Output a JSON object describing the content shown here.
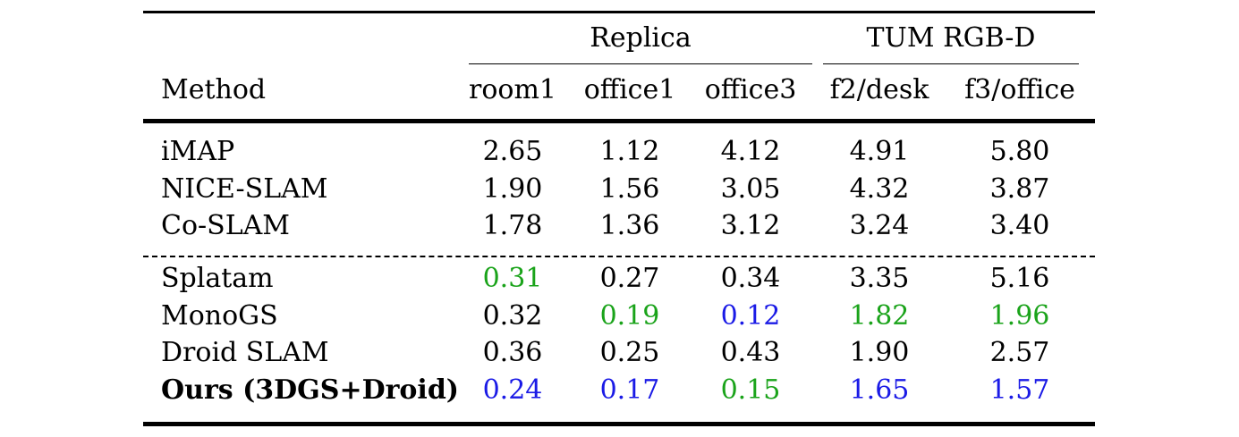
{
  "groups": [
    {
      "label": "Replica",
      "columns": [
        "room1",
        "office1",
        "office3"
      ]
    },
    {
      "label": "TUM RGB-D",
      "columns": [
        "f2/desk",
        "f3/office"
      ]
    }
  ],
  "method_header": "Method",
  "colors": {
    "green": "#1aa31a",
    "blue": "#1a1ae6",
    "black": "#000000"
  },
  "sections": [
    {
      "rows": [
        {
          "method": "iMAP",
          "bold": false,
          "values": [
            {
              "v": "2.65",
              "c": "black"
            },
            {
              "v": "1.12",
              "c": "black"
            },
            {
              "v": "4.12",
              "c": "black"
            },
            {
              "v": "4.91",
              "c": "black"
            },
            {
              "v": "5.80",
              "c": "black"
            }
          ]
        },
        {
          "method": "NICE-SLAM",
          "bold": false,
          "values": [
            {
              "v": "1.90",
              "c": "black"
            },
            {
              "v": "1.56",
              "c": "black"
            },
            {
              "v": "3.05",
              "c": "black"
            },
            {
              "v": "4.32",
              "c": "black"
            },
            {
              "v": "3.87",
              "c": "black"
            }
          ]
        },
        {
          "method": "Co-SLAM",
          "bold": false,
          "values": [
            {
              "v": "1.78",
              "c": "black"
            },
            {
              "v": "1.36",
              "c": "black"
            },
            {
              "v": "3.12",
              "c": "black"
            },
            {
              "v": "3.24",
              "c": "black"
            },
            {
              "v": "3.40",
              "c": "black"
            }
          ]
        }
      ]
    },
    {
      "rows": [
        {
          "method": "Splatam",
          "bold": false,
          "values": [
            {
              "v": "0.31",
              "c": "green"
            },
            {
              "v": "0.27",
              "c": "black"
            },
            {
              "v": "0.34",
              "c": "black"
            },
            {
              "v": "3.35",
              "c": "black"
            },
            {
              "v": "5.16",
              "c": "black"
            }
          ]
        },
        {
          "method": "MonoGS",
          "bold": false,
          "values": [
            {
              "v": "0.32",
              "c": "black"
            },
            {
              "v": "0.19",
              "c": "green"
            },
            {
              "v": "0.12",
              "c": "blue"
            },
            {
              "v": "1.82",
              "c": "green"
            },
            {
              "v": "1.96",
              "c": "green"
            }
          ]
        },
        {
          "method": "Droid SLAM",
          "bold": false,
          "values": [
            {
              "v": "0.36",
              "c": "black"
            },
            {
              "v": "0.25",
              "c": "black"
            },
            {
              "v": "0.43",
              "c": "black"
            },
            {
              "v": "1.90",
              "c": "black"
            },
            {
              "v": "2.57",
              "c": "black"
            }
          ]
        },
        {
          "method": "Ours (3DGS+Droid)",
          "bold": true,
          "values": [
            {
              "v": "0.24",
              "c": "blue"
            },
            {
              "v": "0.17",
              "c": "blue"
            },
            {
              "v": "0.15",
              "c": "green"
            },
            {
              "v": "1.65",
              "c": "blue"
            },
            {
              "v": "1.57",
              "c": "blue"
            }
          ]
        }
      ]
    }
  ]
}
